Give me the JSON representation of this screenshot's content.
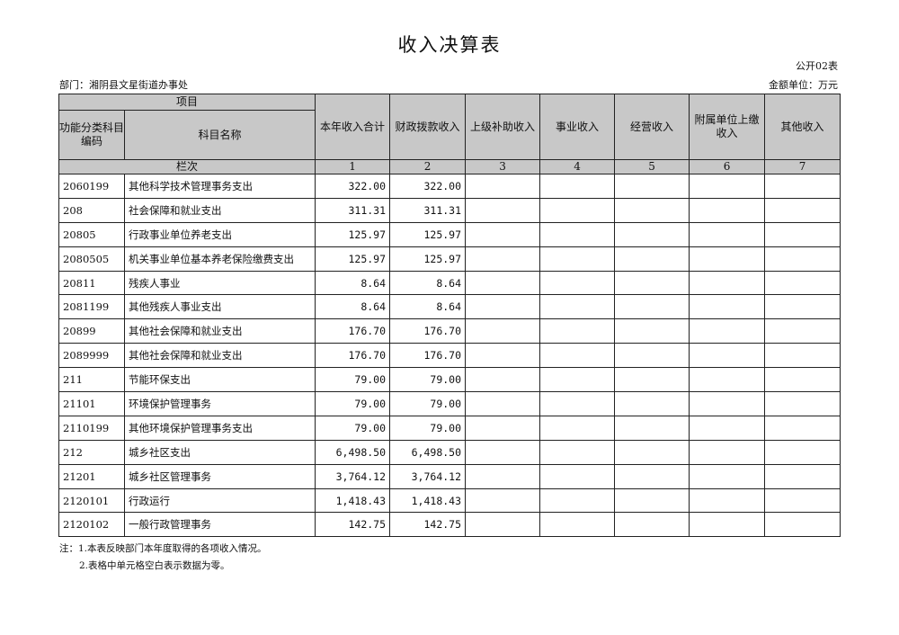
{
  "title": "收入决算表",
  "form_no": "公开02表",
  "department": "部门：湘阴县文星街道办事处",
  "unit": "金额单位：万元",
  "headers": {
    "item": "项目",
    "code": "功能分类科目编码",
    "name": "科目名称",
    "col_index": "栏次",
    "columns": [
      "本年收入合计",
      "财政拨款收入",
      "上级补助收入",
      "事业收入",
      "经营收入",
      "附属单位上缴收入",
      "其他收入"
    ],
    "numbers": [
      "1",
      "2",
      "3",
      "4",
      "5",
      "6",
      "7"
    ]
  },
  "rows": [
    {
      "code": "2060199",
      "name": "其他科学技术管理事务支出",
      "total": "322.00",
      "fiscal": "322.00"
    },
    {
      "code": "208",
      "name": "社会保障和就业支出",
      "total": "311.31",
      "fiscal": "311.31"
    },
    {
      "code": "20805",
      "name": "行政事业单位养老支出",
      "total": "125.97",
      "fiscal": "125.97"
    },
    {
      "code": "2080505",
      "name": "机关事业单位基本养老保险缴费支出",
      "total": "125.97",
      "fiscal": "125.97"
    },
    {
      "code": "20811",
      "name": "残疾人事业",
      "total": "8.64",
      "fiscal": "8.64"
    },
    {
      "code": "2081199",
      "name": "其他残疾人事业支出",
      "total": "8.64",
      "fiscal": "8.64"
    },
    {
      "code": "20899",
      "name": "其他社会保障和就业支出",
      "total": "176.70",
      "fiscal": "176.70"
    },
    {
      "code": "2089999",
      "name": "其他社会保障和就业支出",
      "total": "176.70",
      "fiscal": "176.70"
    },
    {
      "code": "211",
      "name": "节能环保支出",
      "total": "79.00",
      "fiscal": "79.00"
    },
    {
      "code": "21101",
      "name": "环境保护管理事务",
      "total": "79.00",
      "fiscal": "79.00"
    },
    {
      "code": "2110199",
      "name": "其他环境保护管理事务支出",
      "total": "79.00",
      "fiscal": "79.00"
    },
    {
      "code": "212",
      "name": "城乡社区支出",
      "total": "6,498.50",
      "fiscal": "6,498.50"
    },
    {
      "code": "21201",
      "name": "城乡社区管理事务",
      "total": "3,764.12",
      "fiscal": "3,764.12"
    },
    {
      "code": "2120101",
      "name": "行政运行",
      "total": "1,418.43",
      "fiscal": "1,418.43"
    },
    {
      "code": "2120102",
      "name": "一般行政管理事务",
      "total": "142.75",
      "fiscal": "142.75"
    }
  ],
  "notes": [
    "注：1.本表反映部门本年度取得的各项收入情况。",
    "2.表格中单元格空白表示数据为零。"
  ]
}
